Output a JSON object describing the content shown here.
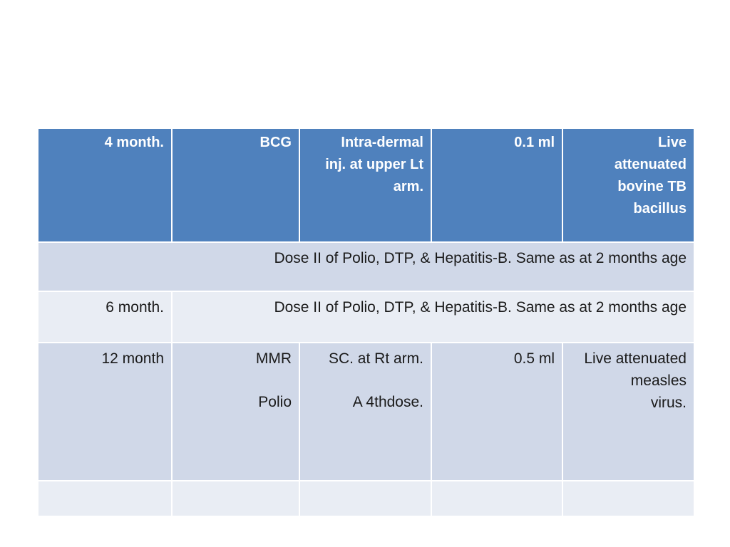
{
  "table": {
    "header_row": {
      "age": "4 month.",
      "vaccine": "BCG",
      "route_lines": [
        "Intra-dermal",
        "inj. at upper Lt",
        "arm."
      ],
      "dose": "0.1 ml",
      "type_lines": [
        "Live",
        "attenuated",
        "bovine TB",
        "bacillus"
      ]
    },
    "row_dose2": {
      "text": "Dose II of Polio, DTP, & Hepatitis-B. Same as at 2 months age"
    },
    "row_6_month": {
      "age": "6 month.",
      "text": "Dose II of Polio, DTP, & Hepatitis-B. Same as at 2 months age"
    },
    "row_12_month": {
      "age": "12 month",
      "vaccine_1": "MMR",
      "vaccine_2": "Polio",
      "route_1": "SC. at Rt arm.",
      "route_2": "A 4thdose.",
      "dose": "0.5 ml",
      "type_lines": [
        "Live attenuated",
        "measles",
        "virus."
      ]
    }
  },
  "colors": {
    "header_bg": "#4f81bd",
    "band_dark": "#d0d8e8",
    "band_light": "#e9edf4"
  }
}
